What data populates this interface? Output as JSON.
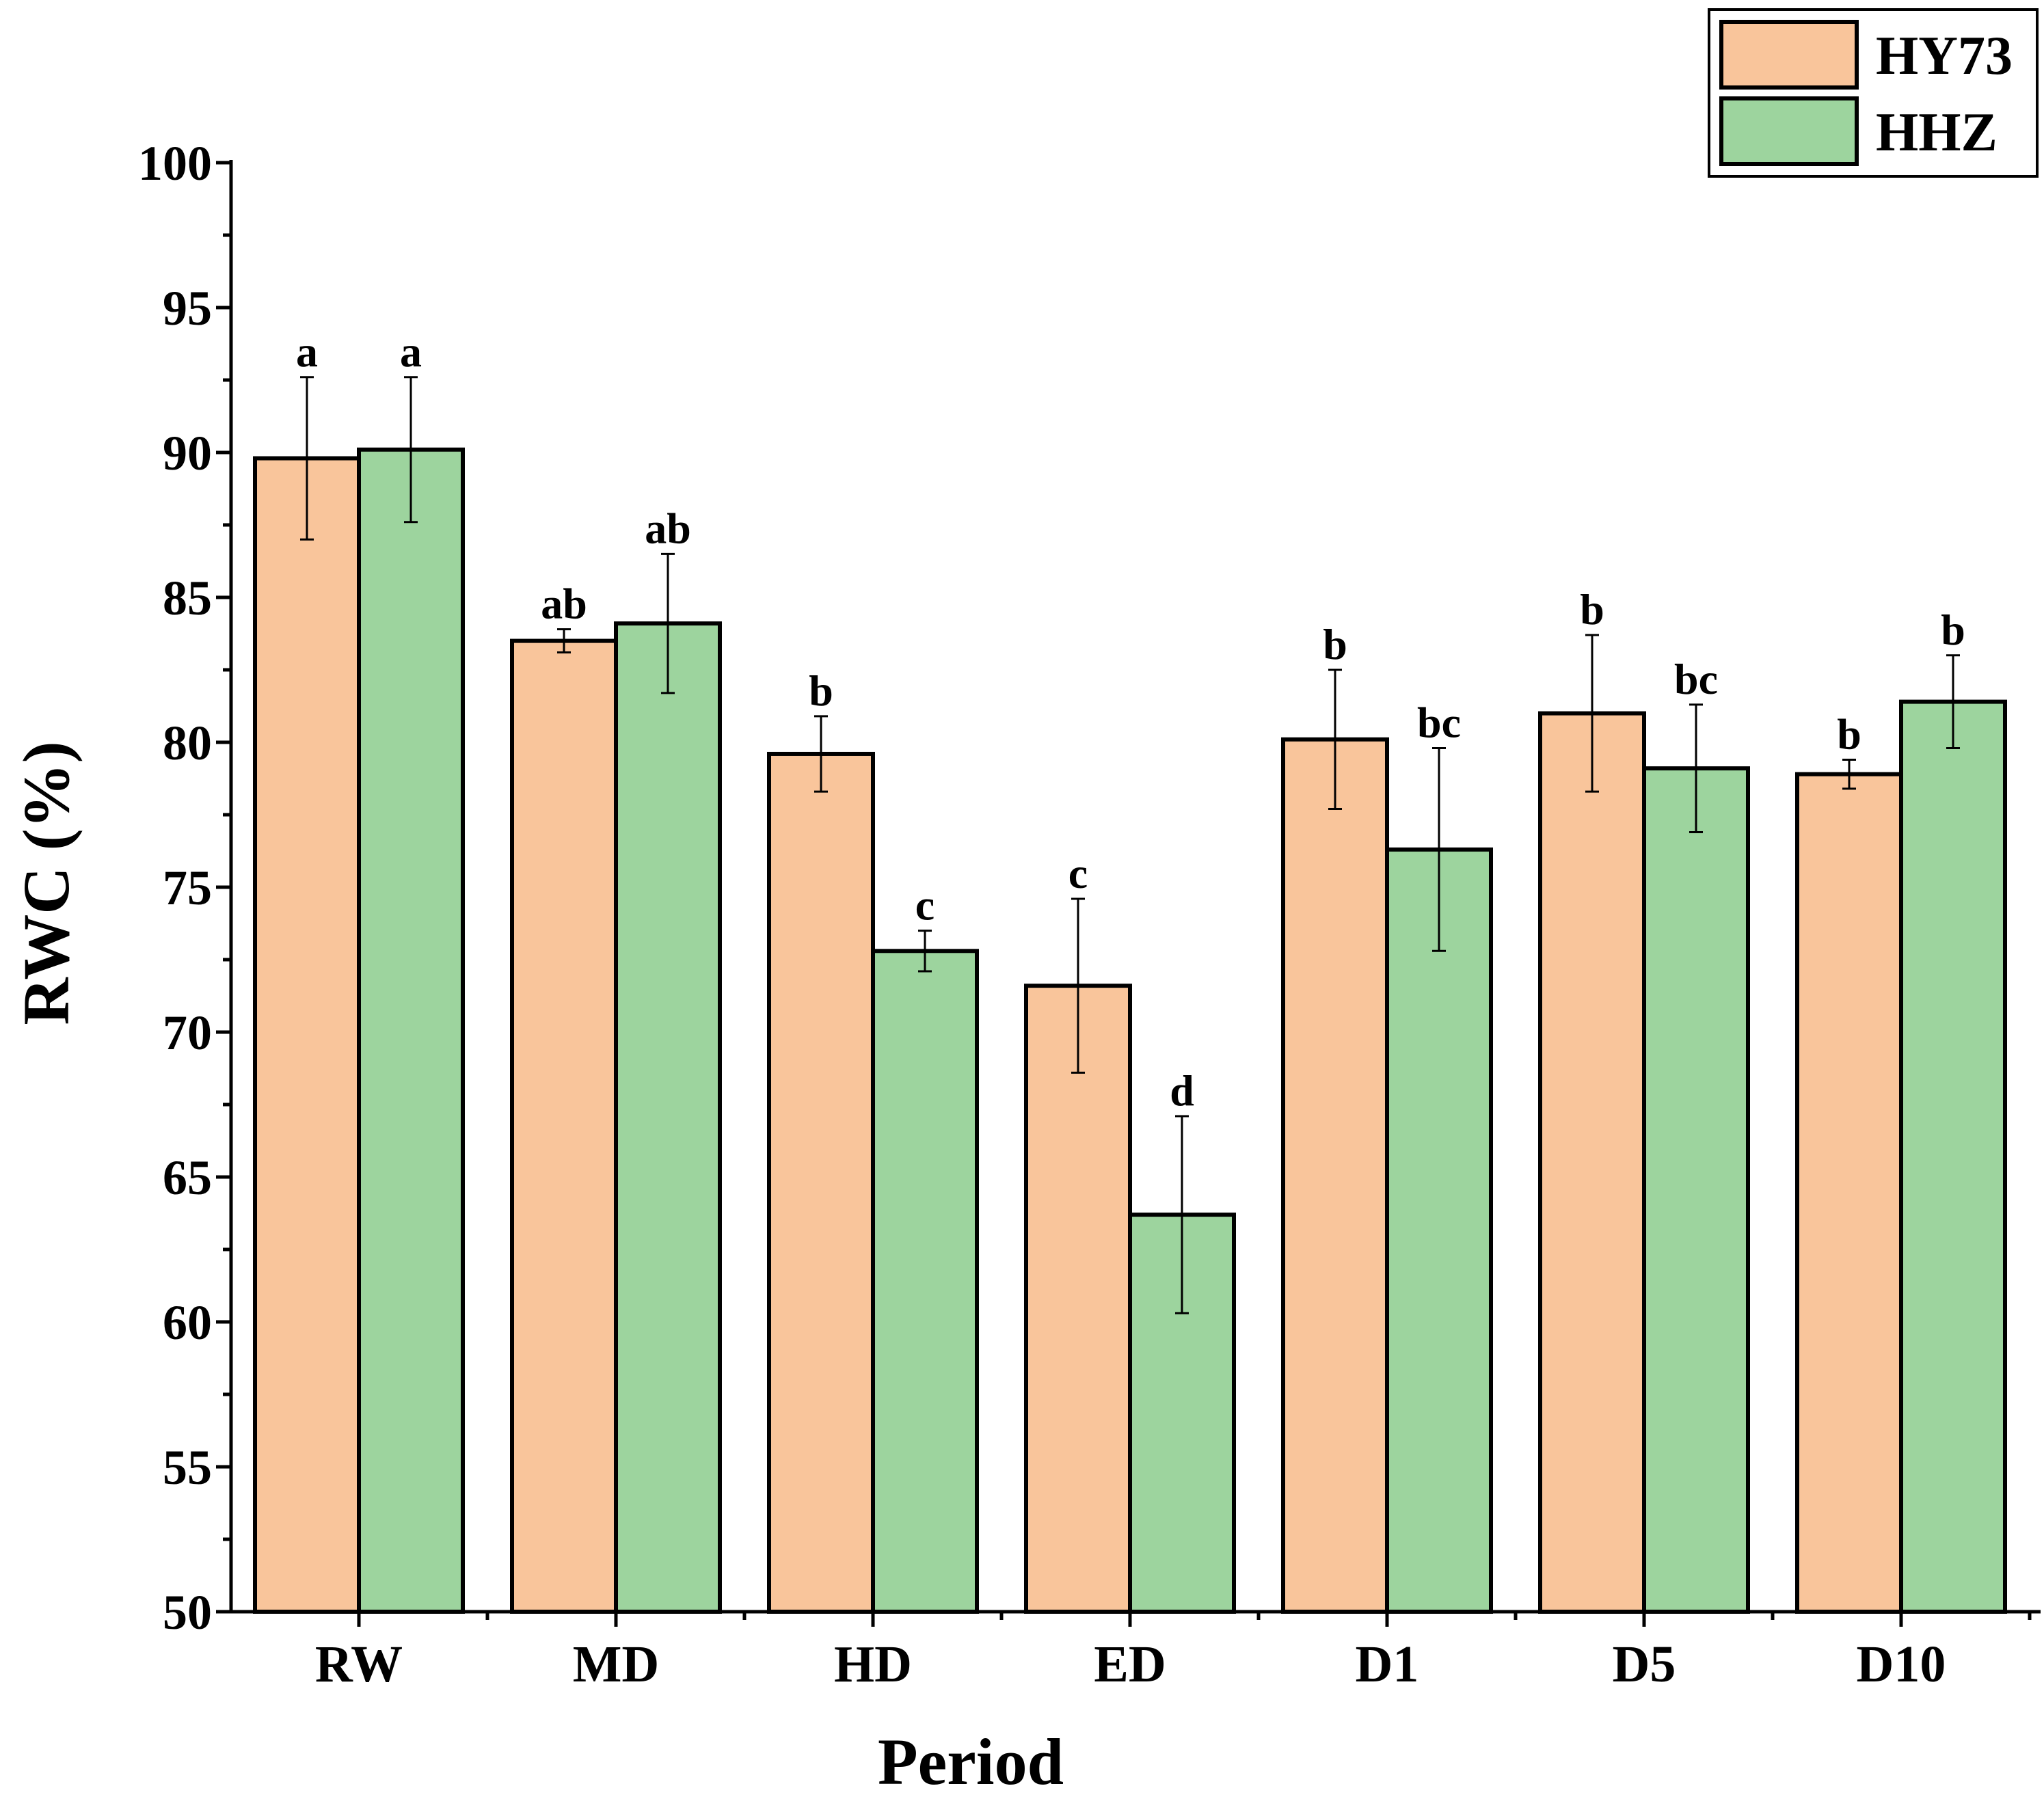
{
  "chart_data": {
    "type": "bar",
    "title": "",
    "xlabel": "Period",
    "ylabel": "RWC (%)",
    "ylim": [
      50,
      100
    ],
    "yticks": [
      50,
      55,
      60,
      65,
      70,
      75,
      80,
      85,
      90,
      95,
      100
    ],
    "categories": [
      "RW",
      "MD",
      "HD",
      "ED",
      "D1",
      "D5",
      "D10"
    ],
    "legend_position": "top-right",
    "series": [
      {
        "name": "HY73",
        "color": "#f9c59b",
        "values": [
          89.8,
          83.5,
          79.6,
          71.6,
          80.1,
          81.0,
          78.9
        ],
        "errors": [
          2.8,
          0.4,
          1.3,
          3.0,
          2.4,
          2.7,
          0.5
        ],
        "labels": [
          "a",
          "ab",
          "b",
          "c",
          "b",
          "b",
          "b"
        ]
      },
      {
        "name": "HHZ",
        "color": "#9dd49e",
        "values": [
          90.1,
          84.1,
          72.8,
          63.7,
          76.3,
          79.1,
          81.4
        ],
        "errors": [
          2.5,
          2.4,
          0.7,
          3.4,
          3.5,
          2.2,
          1.6
        ],
        "labels": [
          "a",
          "ab",
          "c",
          "d",
          "bc",
          "bc",
          "b"
        ]
      }
    ]
  }
}
